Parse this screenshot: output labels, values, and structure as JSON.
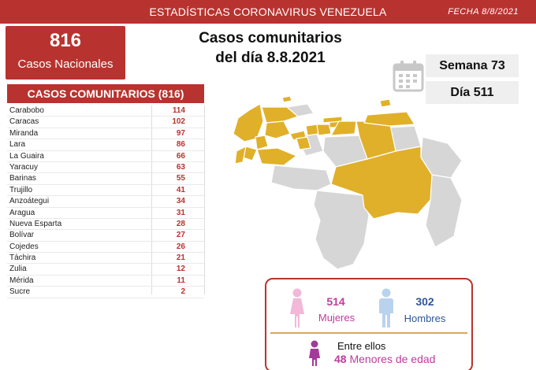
{
  "header": {
    "title": "ESTADÍSTICAS CORONAVIRUS VENEZUELA",
    "date": "FECHA 8/8/2021"
  },
  "national": {
    "count": "816",
    "label": "Casos Nacionales"
  },
  "main_title": {
    "line1": "Casos comunitarios",
    "line2": "del día 8.8.2021"
  },
  "week": "Semana 73",
  "day": "Día 511",
  "table": {
    "header": "CASOS COMUNITARIOS (816)",
    "rows": [
      {
        "state": "Carabobo",
        "cases": "114"
      },
      {
        "state": "Caracas",
        "cases": "102"
      },
      {
        "state": "Miranda",
        "cases": "97"
      },
      {
        "state": "Lara",
        "cases": "86"
      },
      {
        "state": "La Guaira",
        "cases": "66"
      },
      {
        "state": "Yaracuy",
        "cases": "63"
      },
      {
        "state": "Barinas",
        "cases": "55"
      },
      {
        "state": "Trujillo",
        "cases": "41"
      },
      {
        "state": "Anzoátegui",
        "cases": "34"
      },
      {
        "state": "Aragua",
        "cases": "31"
      },
      {
        "state": "Nueva Esparta",
        "cases": "28"
      },
      {
        "state": "Bolívar",
        "cases": "27"
      },
      {
        "state": "Cojedes",
        "cases": "26"
      },
      {
        "state": "Táchira",
        "cases": "21"
      },
      {
        "state": "Zulia",
        "cases": "12"
      },
      {
        "state": "Mérida",
        "cases": "11"
      },
      {
        "state": "Sucre",
        "cases": "2"
      }
    ]
  },
  "gender": {
    "women_count": "514",
    "women_label": "Mujeres",
    "men_count": "302",
    "men_label": "Hombres",
    "minors_intro": "Entre ellos",
    "minors_count": "48",
    "minors_label": "Menores de edad"
  },
  "colors": {
    "brand_red": "#b8332f",
    "affected_state": "#e0b02a",
    "unaffected_state": "#d6d6d6",
    "female": "#c13b9c",
    "male": "#2f5597"
  },
  "icons": [
    "calendar-icon",
    "female-icon",
    "male-icon",
    "minor-icon"
  ]
}
